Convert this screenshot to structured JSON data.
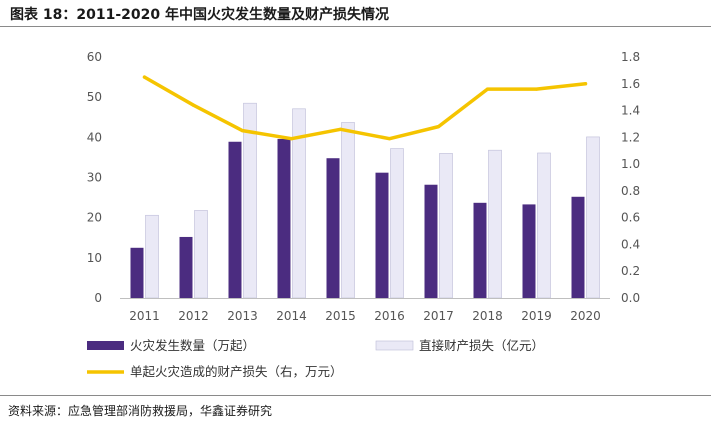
{
  "title": "图表 18：2011-2020 年中国火灾发生数量及财产损失情况",
  "source": "资料来源：应急管理部消防救援局，华鑫证券研究",
  "colors": {
    "fire_count": "#4b2c80",
    "direct_loss": "#eae9f6",
    "direct_loss_border": "#bdbcd8",
    "single_loss": "#f5c400"
  },
  "chart_data": {
    "type": "bar",
    "categories": [
      "2011",
      "2012",
      "2013",
      "2014",
      "2015",
      "2016",
      "2017",
      "2018",
      "2019",
      "2020"
    ],
    "series": [
      {
        "name": "火灾发生数量（万起）",
        "type": "bar",
        "axis": "left",
        "values": [
          12.5,
          15.2,
          38.9,
          39.6,
          34.8,
          31.2,
          28.2,
          23.7,
          23.3,
          25.2
        ]
      },
      {
        "name": "直接财产损失（亿元）",
        "type": "bar",
        "axis": "left",
        "values": [
          20.6,
          21.8,
          48.5,
          47.1,
          43.7,
          37.2,
          36.0,
          36.8,
          36.1,
          40.1
        ]
      },
      {
        "name": "单起火灾造成的财产损失（右，万元）",
        "type": "line",
        "axis": "right",
        "values": [
          1.65,
          1.44,
          1.25,
          1.19,
          1.26,
          1.19,
          1.28,
          1.56,
          1.56,
          1.6
        ]
      }
    ],
    "ylim": [
      0,
      60
    ],
    "yticks": [
      "0",
      "10",
      "20",
      "30",
      "40",
      "50",
      "60"
    ],
    "y2lim": [
      0,
      1.8
    ],
    "y2ticks": [
      "0.0",
      "0.2",
      "0.4",
      "0.6",
      "0.8",
      "1.0",
      "1.2",
      "1.4",
      "1.6",
      "1.8"
    ],
    "grid": false,
    "legend_position": "bottom"
  }
}
